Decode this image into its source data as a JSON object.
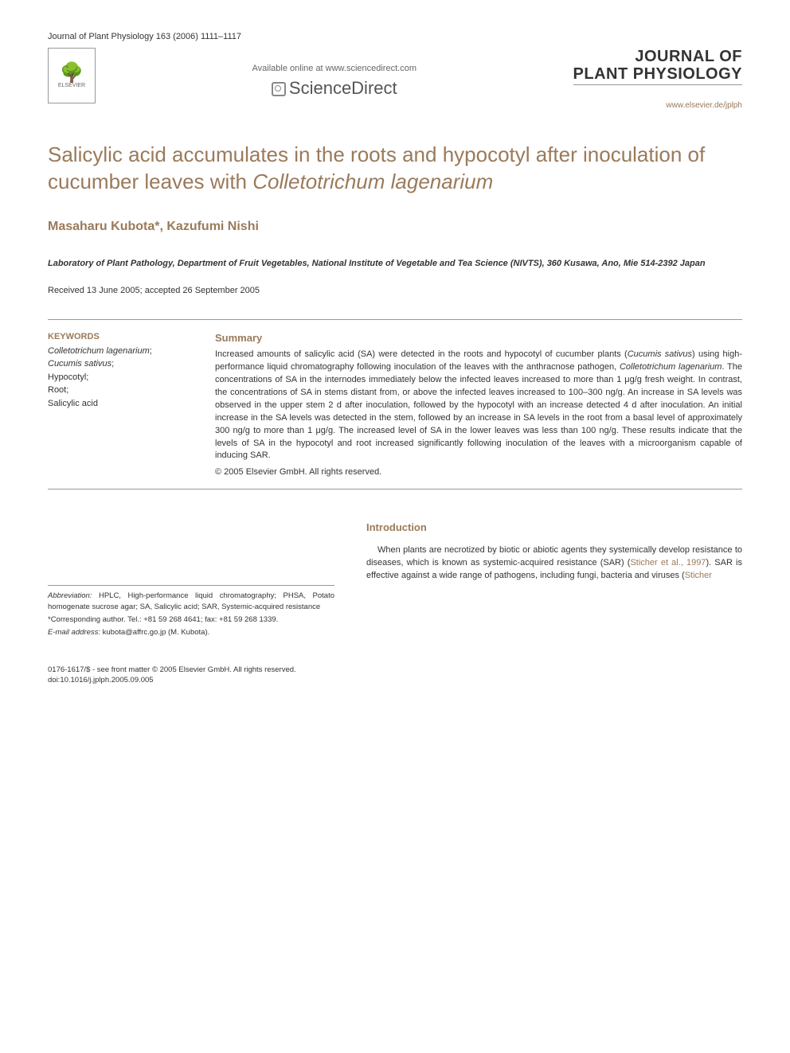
{
  "header": {
    "journal_ref": "Journal of Plant Physiology 163 (2006) 1111–1117",
    "elsevier_label": "ELSEVIER",
    "available_text": "Available online at www.sciencedirect.com",
    "science_direct": "ScienceDirect",
    "journal_title_line1": "JOURNAL OF",
    "journal_title_line2": "PLANT PHYSIOLOGY",
    "journal_url": "www.elsevier.de/jplph"
  },
  "article": {
    "title_part1": "Salicylic acid accumulates in the roots and hypocotyl after inoculation of cucumber leaves with ",
    "title_italic": "Colletotrichum lagenarium",
    "authors": "Masaharu Kubota*, Kazufumi Nishi",
    "affiliation": "Laboratory of Plant Pathology, Department of Fruit Vegetables, National Institute of Vegetable and Tea Science (NIVTS), 360 Kusawa, Ano, Mie 514-2392 Japan",
    "dates": "Received 13 June 2005; accepted 26 September 2005"
  },
  "keywords": {
    "heading": "KEYWORDS",
    "item1_italic": "Colletotrichum lagenarium",
    "item2_italic": "Cucumis sativus",
    "item3": "Hypocotyl;",
    "item4": "Root;",
    "item5": "Salicylic acid"
  },
  "summary": {
    "heading": "Summary",
    "text_p1a": "Increased amounts of salicylic acid (SA) were detected in the roots and hypocotyl of cucumber plants (",
    "text_p1_italic1": "Cucumis sativus",
    "text_p1b": ") using high-performance liquid chromatography following inoculation of the leaves with the anthracnose pathogen, ",
    "text_p1_italic2": "Colletotrichum lagenarium",
    "text_p1c": ". The concentrations of SA in the internodes immediately below the infected leaves increased to more than 1 μg/g fresh weight. In contrast, the concentrations of SA in stems distant from, or above the infected leaves increased to 100–300 ng/g. An increase in SA levels was observed in the upper stem 2 d after inoculation, followed by the hypocotyl with an increase detected 4 d after inoculation. An initial increase in the SA levels was detected in the stem, followed by an increase in SA levels in the root from a basal level of approximately 300 ng/g to more than 1 μg/g. The increased level of SA in the lower leaves was less than 100 ng/g. These results indicate that the levels of SA in the hypocotyl and root increased significantly following inoculation of the leaves with a microorganism capable of inducing SAR.",
    "copyright": "© 2005 Elsevier GmbH. All rights reserved."
  },
  "footnotes": {
    "abbrev_label": "Abbreviation:",
    "abbrev_text": " HPLC, High-performance liquid chromatography; PHSA, Potato homogenate sucrose agar; SA, Salicylic acid; SAR, Systemic-acquired resistance",
    "corresponding": "*Corresponding author. Tel.: +81 59 268 4641; fax: +81 59 268 1339.",
    "email_label": "E-mail address:",
    "email_text": " kubota@affrc.go.jp (M. Kubota)."
  },
  "introduction": {
    "heading": "Introduction",
    "text_a": "When plants are necrotized by biotic or abiotic agents they systemically develop resistance to diseases, which is known as systemic-acquired resistance (SAR) (",
    "ref1": "Sticher et al., 1997",
    "text_b": "). SAR is effective against a wide range of pathogens, including fungi, bacteria and viruses (",
    "ref2": "Sticher"
  },
  "footer": {
    "line1": "0176-1617/$ - see front matter © 2005 Elsevier GmbH. All rights reserved.",
    "line2": "doi:10.1016/j.jplph.2005.09.005"
  },
  "colors": {
    "accent": "#9a7a5a",
    "text": "#333333",
    "background": "#ffffff",
    "rule": "#999999"
  },
  "typography": {
    "body_fontsize_pt": 11,
    "title_fontsize_pt": 26,
    "heading_fontsize_pt": 13,
    "footnote_fontsize_pt": 9.5
  }
}
